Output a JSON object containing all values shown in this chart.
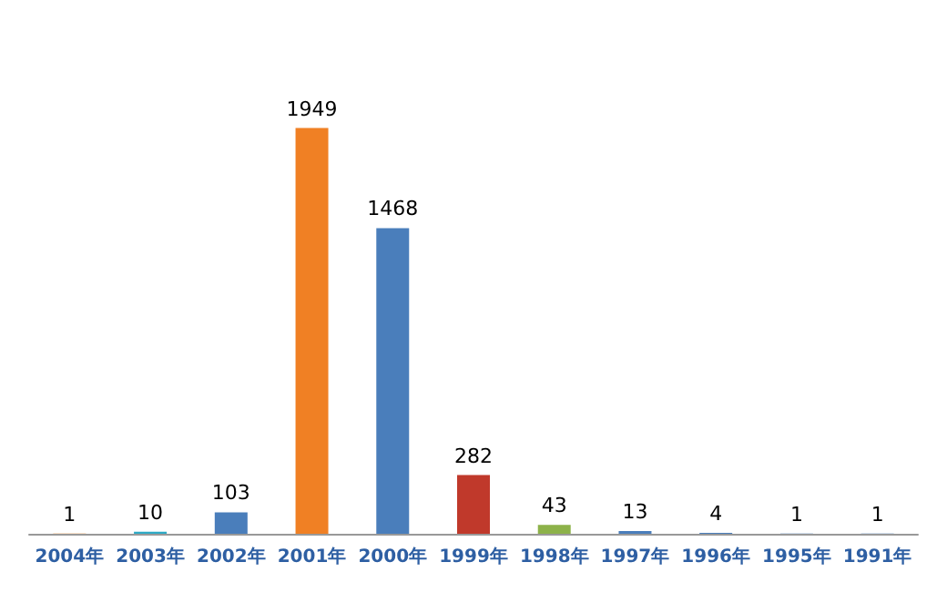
{
  "chart_data": {
    "type": "bar",
    "categories": [
      "2004年",
      "2003年",
      "2002年",
      "2001年",
      "2000年",
      "1999年",
      "1998年",
      "1997年",
      "1996年",
      "1995年",
      "1991年"
    ],
    "values": [
      1,
      10,
      103,
      1949,
      1468,
      282,
      43,
      13,
      4,
      1,
      1
    ],
    "colors": [
      "#f28a2e",
      "#2eaac5",
      "#4a7ebb",
      "#f08024",
      "#4a7ebb",
      "#c0392b",
      "#8db24a",
      "#4a7ebb",
      "#4a7ebb",
      "#4a7ebb",
      "#4a7ebb"
    ],
    "data_labels": true
  }
}
